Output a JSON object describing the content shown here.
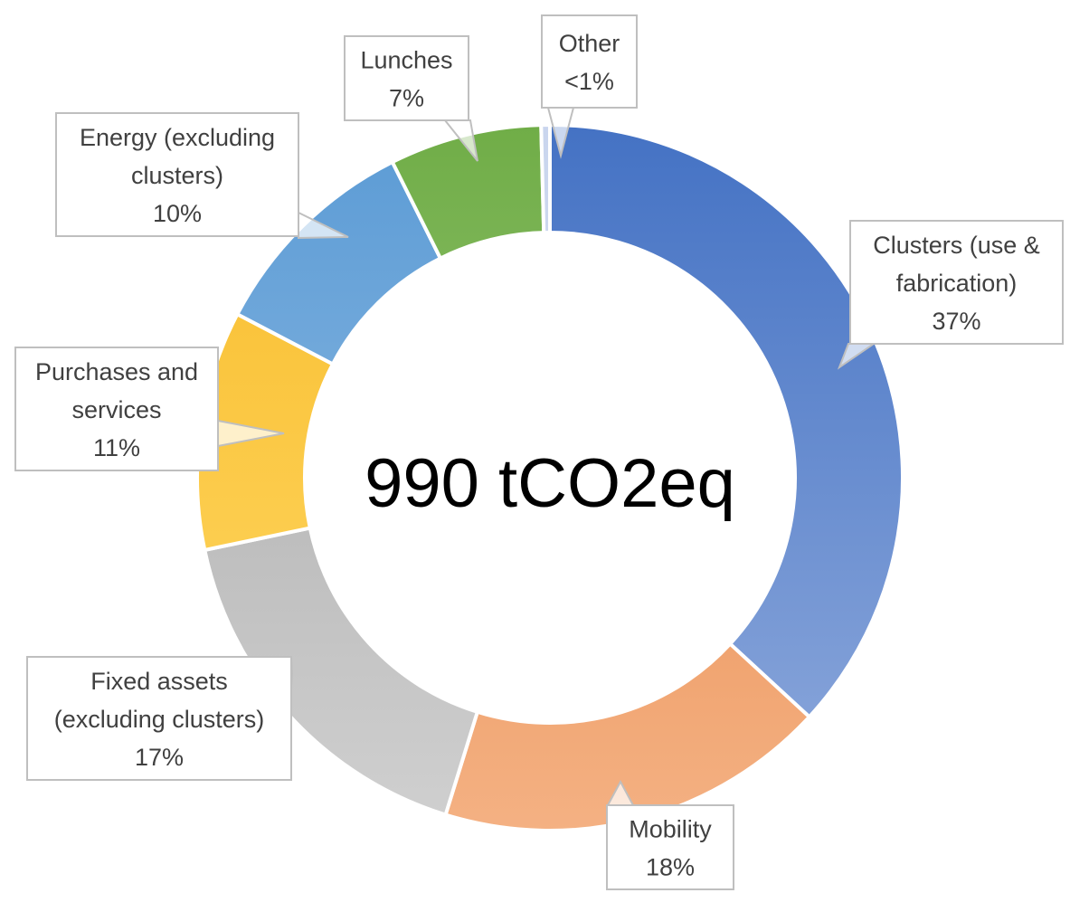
{
  "chart_data": {
    "type": "pie",
    "subtype": "donut",
    "center_label": "990 tCO2eq",
    "gradient": "vertical, darker top",
    "slices": [
      {
        "key": "clusters",
        "label_lines": [
          "Clusters (use &",
          "fabrication)"
        ],
        "percent_label": "37%",
        "value": 37,
        "color": "#4472C4",
        "color_light": "#8FAADC"
      },
      {
        "key": "mobility",
        "label_lines": [
          "Mobility"
        ],
        "percent_label": "18%",
        "value": 18,
        "color": "#E67E3A",
        "color_light": "#F4B183"
      },
      {
        "key": "fixed-assets",
        "label_lines": [
          "Fixed assets",
          "(excluding clusters)"
        ],
        "percent_label": "17%",
        "value": 17,
        "color": "#A5A5A5",
        "color_light": "#D0D0D0"
      },
      {
        "key": "purchases",
        "label_lines": [
          "Purchases and",
          "services"
        ],
        "percent_label": "11%",
        "value": 11,
        "color": "#F8BC2C",
        "color_light": "#FFD966"
      },
      {
        "key": "energy",
        "label_lines": [
          "Energy (excluding",
          "clusters)"
        ],
        "percent_label": "10%",
        "value": 10,
        "color": "#5B9BD5",
        "color_light": "#9DC3E6"
      },
      {
        "key": "lunches",
        "label_lines": [
          "Lunches"
        ],
        "percent_label": "7%",
        "value": 7,
        "color": "#70AD47",
        "color_light": "#A9D18E"
      },
      {
        "key": "other",
        "label_lines": [
          "Other"
        ],
        "percent_label": "<1%",
        "value": 0.4,
        "color": "#C9D5EE",
        "color_light": "#DAE3F3"
      }
    ]
  }
}
